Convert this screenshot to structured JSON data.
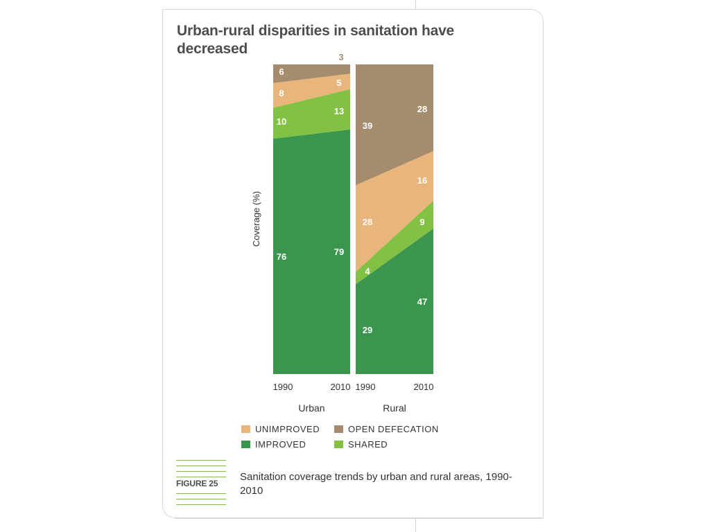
{
  "page": {
    "title": "Urban-rural disparities in sanitation have decreased",
    "figure_label": "FIGURE 25",
    "figure_caption": "Sanitation coverage trends by urban and rural areas, 1990-2010"
  },
  "colors": {
    "improved": "#3a954d",
    "shared": "#83c145",
    "unimproved": "#e8b67c",
    "open_defecation": "#a48c6d",
    "label_text": "#ffffff",
    "outside_label": "#a48c6d"
  },
  "legend": [
    {
      "key": "unimproved",
      "label": "UNIMPROVED"
    },
    {
      "key": "open_defecation",
      "label": "OPEN DEFECATION"
    },
    {
      "key": "improved",
      "label": "IMPROVED"
    },
    {
      "key": "shared",
      "label": "SHARED"
    }
  ],
  "chart_data": {
    "type": "area",
    "title": "Urban-rural disparities in sanitation have decreased",
    "ylabel": "Coverage (%)",
    "xlabel": "",
    "ylim": [
      0,
      100
    ],
    "stack_order": [
      "improved",
      "shared",
      "unimproved",
      "open_defecation"
    ],
    "panels": [
      {
        "name": "Urban",
        "x": [
          "1990",
          "2010"
        ],
        "series": [
          {
            "name": "IMPROVED",
            "key": "improved",
            "values": [
              76,
              79
            ]
          },
          {
            "name": "SHARED",
            "key": "shared",
            "values": [
              10,
              13
            ]
          },
          {
            "name": "UNIMPROVED",
            "key": "unimproved",
            "values": [
              8,
              5
            ]
          },
          {
            "name": "OPEN DEFECATION",
            "key": "open_defecation",
            "values": [
              6,
              3
            ]
          }
        ]
      },
      {
        "name": "Rural",
        "x": [
          "1990",
          "2010"
        ],
        "series": [
          {
            "name": "IMPROVED",
            "key": "improved",
            "values": [
              29,
              47
            ]
          },
          {
            "name": "SHARED",
            "key": "shared",
            "values": [
              4,
              9
            ]
          },
          {
            "name": "UNIMPROVED",
            "key": "unimproved",
            "values": [
              28,
              16
            ]
          },
          {
            "name": "OPEN DEFECATION",
            "key": "open_defecation",
            "values": [
              39,
              28
            ]
          }
        ]
      }
    ]
  }
}
